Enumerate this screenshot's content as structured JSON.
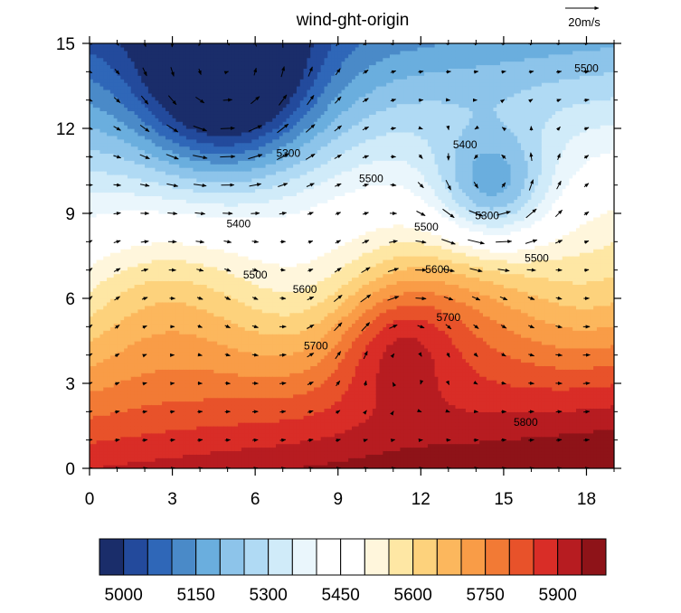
{
  "chart_data": {
    "type": "heatmap",
    "title": "wind-ght-origin",
    "overlay": "wind vectors",
    "reference_vector_label": "20m/s",
    "xlim": [
      0,
      19
    ],
    "ylim": [
      0,
      15
    ],
    "x_ticks": [
      "0",
      "3",
      "6",
      "9",
      "12",
      "15",
      "18"
    ],
    "y_ticks": [
      "0",
      "3",
      "6",
      "9",
      "12",
      "15"
    ],
    "contour_labels": [
      {
        "text": "5300",
        "x": 7.2,
        "y": 11.1
      },
      {
        "text": "5400",
        "x": 5.4,
        "y": 8.6
      },
      {
        "text": "5500",
        "x": 6.0,
        "y": 6.8
      },
      {
        "text": "5600",
        "x": 7.8,
        "y": 6.3
      },
      {
        "text": "5700",
        "x": 8.2,
        "y": 4.3
      },
      {
        "text": "5500",
        "x": 10.2,
        "y": 10.2
      },
      {
        "text": "5500",
        "x": 12.2,
        "y": 8.5
      },
      {
        "text": "5600",
        "x": 12.6,
        "y": 7.0
      },
      {
        "text": "5700",
        "x": 13.0,
        "y": 5.3
      },
      {
        "text": "5400",
        "x": 13.6,
        "y": 11.4
      },
      {
        "text": "5300",
        "x": 14.4,
        "y": 8.9
      },
      {
        "text": "5500",
        "x": 16.2,
        "y": 7.4
      },
      {
        "text": "5500",
        "x": 18.0,
        "y": 14.1
      },
      {
        "text": "5800",
        "x": 15.8,
        "y": 1.6
      }
    ],
    "colorbar": {
      "labels": [
        "5000",
        "5150",
        "5300",
        "5450",
        "5600",
        "5750",
        "5900"
      ],
      "colors": [
        "#1a2d6a",
        "#234a9c",
        "#2f67b8",
        "#4a8ac8",
        "#6aaede",
        "#8dc4ea",
        "#b0daf4",
        "#d0ebf9",
        "#eaf6fc",
        "#ffffff",
        "#ffffff",
        "#fff6dc",
        "#fee7a4",
        "#fdd27c",
        "#fcb75d",
        "#f99c47",
        "#f27a35",
        "#e8522a",
        "#d92d27",
        "#b71c21",
        "#8e1318"
      ]
    },
    "field_centers": {
      "low_1": {
        "x": 5,
        "y": 13.5
      },
      "low_2": {
        "x": 14.6,
        "y": 9.8
      }
    }
  }
}
